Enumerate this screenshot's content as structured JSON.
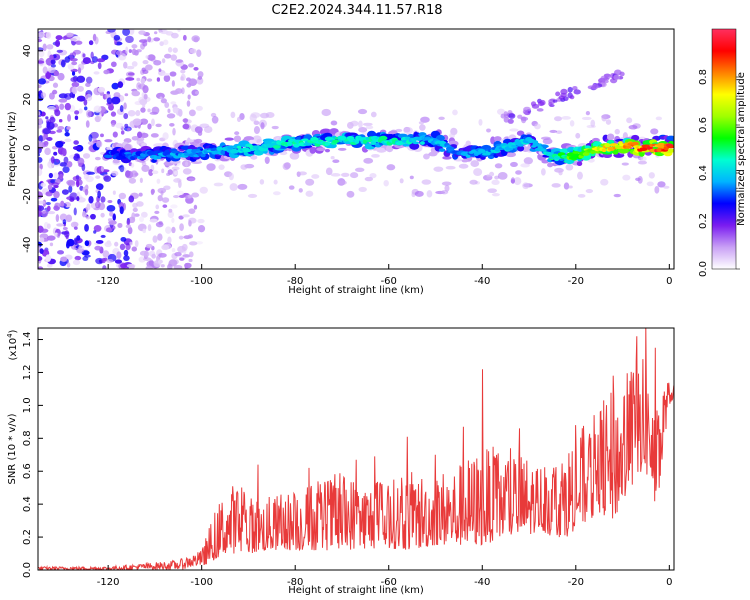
{
  "title": "C2E2.2024.344.11.57.R18",
  "colors": {
    "snr_line": "#e83a3a",
    "axis": "#000000"
  },
  "chart_data": [
    {
      "type": "heatmap",
      "name": "spectrogram",
      "xlabel": "Height of straight line (km)",
      "ylabel": "Frequency (Hz)",
      "xlim": [
        -135,
        1
      ],
      "ylim": [
        -50,
        49
      ],
      "xticks": [
        -120,
        -100,
        -80,
        -60,
        -40,
        -20,
        0
      ],
      "yticks": [
        -40,
        -20,
        0,
        20,
        40
      ],
      "colorbar": {
        "label": "Normalized spectral amplitude",
        "range": [
          0,
          1
        ],
        "ticks": [
          "0.0",
          "0.2",
          "0.4",
          "0.6",
          "0.8"
        ],
        "tick_values": [
          0.0,
          0.2,
          0.4,
          0.6,
          0.8
        ],
        "stops": [
          "#ffffff",
          "#c9a0f5",
          "#7a1cf0",
          "#0000ff",
          "#00b4ff",
          "#00ffd0",
          "#00ff00",
          "#a0ff00",
          "#ffff00",
          "#ff8000",
          "#ff0000",
          "#ff3060"
        ]
      },
      "ridge": {
        "x": [
          -118,
          -110,
          -100,
          -90,
          -80,
          -70,
          -60,
          -50,
          -45,
          -40,
          -35,
          -30,
          -25,
          -20,
          -15,
          -10,
          -5,
          0
        ],
        "frequency": [
          -3,
          -3,
          -2,
          0,
          2,
          3,
          3,
          3,
          -3,
          -2,
          0,
          3,
          -4,
          -3,
          0,
          1,
          0,
          0
        ],
        "amplitude": [
          0.3,
          0.35,
          0.35,
          0.45,
          0.45,
          0.45,
          0.45,
          0.4,
          0.35,
          0.35,
          0.4,
          0.4,
          0.45,
          0.6,
          0.7,
          0.75,
          0.85,
          0.95
        ]
      }
    },
    {
      "type": "line",
      "name": "snr",
      "xlabel": "Height of straight line (km)",
      "ylabel": "SNR (10 * v/v)",
      "y_multiplier": "(x10",
      "y_multiplier_exp": "4",
      "y_multiplier_close": ")",
      "xlim": [
        -135,
        1
      ],
      "ylim": [
        0,
        1.47
      ],
      "xticks": [
        -120,
        -100,
        -80,
        -60,
        -40,
        -20,
        0
      ],
      "yticks": [
        "0.0",
        "0.2",
        "0.4",
        "0.6",
        "0.8",
        "1.0",
        "1.2",
        "1.4"
      ],
      "ytick_values": [
        0.0,
        0.2,
        0.4,
        0.6,
        0.8,
        1.0,
        1.2,
        1.4
      ],
      "envelope": {
        "x": [
          -135,
          -120,
          -105,
          -100,
          -98,
          -95,
          -92,
          -90,
          -85,
          -80,
          -75,
          -70,
          -65,
          -60,
          -55,
          -50,
          -45,
          -40,
          -35,
          -30,
          -28,
          -25,
          -22,
          -20,
          -17,
          -15,
          -12,
          -10,
          -8,
          -6,
          -4,
          -3,
          -2,
          -1,
          0,
          1
        ],
        "low": [
          0.0,
          0.0,
          0.0,
          0.02,
          0.05,
          0.1,
          0.1,
          0.1,
          0.12,
          0.12,
          0.12,
          0.12,
          0.13,
          0.13,
          0.12,
          0.15,
          0.15,
          0.15,
          0.2,
          0.2,
          0.25,
          0.2,
          0.2,
          0.25,
          0.3,
          0.35,
          0.3,
          0.4,
          0.5,
          0.6,
          0.55,
          0.35,
          0.5,
          0.8,
          1.0,
          1.05
        ],
        "high": [
          0.02,
          0.02,
          0.06,
          0.12,
          0.3,
          0.5,
          0.55,
          0.45,
          0.45,
          0.5,
          0.55,
          0.6,
          0.55,
          0.55,
          0.6,
          0.6,
          0.65,
          0.75,
          0.75,
          0.7,
          0.65,
          0.7,
          0.75,
          0.85,
          0.9,
          1.0,
          1.1,
          1.2,
          1.3,
          1.3,
          1.25,
          0.9,
          1.1,
          1.15,
          1.15,
          1.12
        ]
      },
      "peaks": [
        {
          "x": -88,
          "y": 0.64
        },
        {
          "x": -77,
          "y": 0.62
        },
        {
          "x": -67,
          "y": 0.67
        },
        {
          "x": -63,
          "y": 0.69
        },
        {
          "x": -56,
          "y": 0.81
        },
        {
          "x": -50,
          "y": 0.7
        },
        {
          "x": -44,
          "y": 0.87
        },
        {
          "x": -40,
          "y": 1.22
        },
        {
          "x": -32,
          "y": 0.86
        },
        {
          "x": -20,
          "y": 0.88
        },
        {
          "x": -14,
          "y": 1.03
        },
        {
          "x": -12,
          "y": 1.18
        },
        {
          "x": -7,
          "y": 1.42
        },
        {
          "x": -5,
          "y": 1.48
        },
        {
          "x": -3,
          "y": 1.35
        }
      ]
    }
  ]
}
